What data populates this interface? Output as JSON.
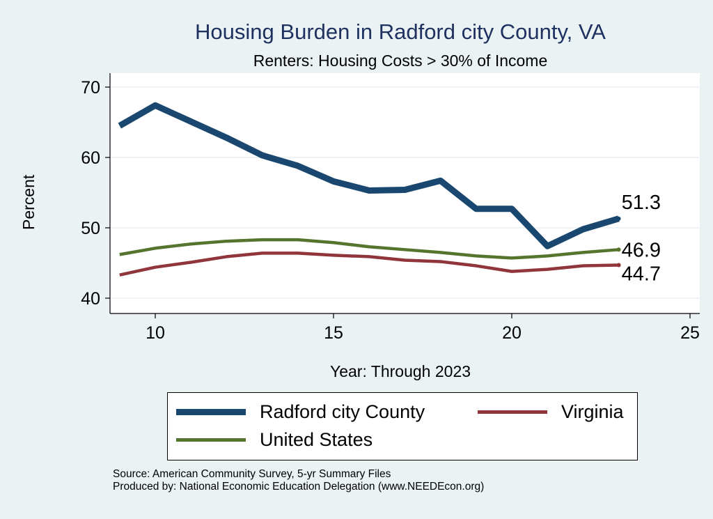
{
  "chart_data": {
    "type": "line",
    "title": "Housing Burden in Radford city County, VA",
    "subtitle": "Renters: Housing Costs > 30% of Income",
    "xlabel": "Year: Through 2023",
    "ylabel": "Percent",
    "xlim": [
      8.7,
      25.3
    ],
    "ylim": [
      38.5,
      71.5
    ],
    "xticks": [
      10,
      15,
      20,
      25
    ],
    "yticks": [
      40,
      50,
      60,
      70
    ],
    "grid": true,
    "legend_position": "bottom",
    "x": [
      9,
      10,
      11,
      12,
      13,
      14,
      15,
      16,
      17,
      18,
      19,
      20,
      21,
      22,
      23
    ],
    "series": [
      {
        "name": "Radford city County",
        "color": "#1a476f",
        "width": 9,
        "values": [
          64.5,
          67.4,
          65.1,
          62.8,
          60.3,
          58.8,
          56.6,
          55.3,
          55.4,
          56.7,
          52.7,
          52.7,
          47.4,
          49.8,
          51.3
        ],
        "end_label": "51.3"
      },
      {
        "name": "Virginia",
        "color": "#90353b",
        "width": 4.5,
        "values": [
          43.3,
          44.4,
          45.1,
          45.9,
          46.4,
          46.4,
          46.1,
          45.9,
          45.4,
          45.2,
          44.6,
          43.8,
          44.1,
          44.6,
          44.7
        ],
        "end_label": "44.7"
      },
      {
        "name": "United States",
        "color": "#55752f",
        "width": 4.5,
        "values": [
          46.2,
          47.1,
          47.7,
          48.1,
          48.3,
          48.3,
          47.9,
          47.3,
          46.9,
          46.5,
          46.0,
          45.7,
          46.0,
          46.5,
          46.9
        ],
        "end_label": "46.9"
      }
    ]
  },
  "source": "Source: American Community Survey, 5-yr Summary Files",
  "produced": "Produced by: National Economic Education Delegation (www.NEEDEcon.org)"
}
